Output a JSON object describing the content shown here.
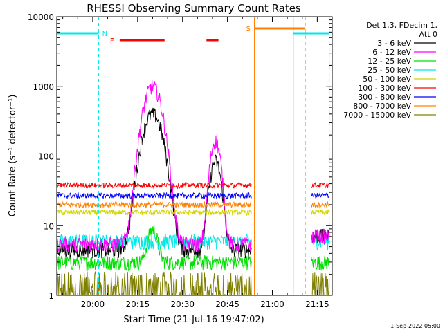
{
  "chart_data": {
    "type": "line",
    "title": "RHESSI Observing Summary Count Rates",
    "xlabel": "Start Time (21-Jul-16 19:47:02)",
    "ylabel": "Count Rate (s⁻¹ detector⁻¹)",
    "yscale": "log",
    "ylim": [
      1,
      10000
    ],
    "xlim_minutes": [
      -12,
      80
    ],
    "x_ticks": [
      {
        "m": 0,
        "label": "20:00"
      },
      {
        "m": 15,
        "label": "20:15"
      },
      {
        "m": 30,
        "label": "20:30"
      },
      {
        "m": 45,
        "label": "20:45"
      },
      {
        "m": 60,
        "label": "21:00"
      },
      {
        "m": 75,
        "label": "21:15"
      }
    ],
    "y_ticks": [
      {
        "v": 1,
        "label": "1"
      },
      {
        "v": 10,
        "label": "10"
      },
      {
        "v": 100,
        "label": "100"
      },
      {
        "v": 1000,
        "label": "1000"
      },
      {
        "v": 10000,
        "label": "10000"
      }
    ],
    "legend_header": [
      "Det 1,3, FDecim 1,",
      "Att 0"
    ],
    "legend_placement": "right",
    "series": [
      {
        "name": "3 - 6 keV",
        "color": "#000000",
        "base": 4.5,
        "peaks": [
          [
            20,
            400,
            3.8
          ],
          [
            41,
            80,
            2.2
          ]
        ],
        "rise": 1.6
      },
      {
        "name": "6 - 12 keV",
        "color": "#ff00ff",
        "base": 5.5,
        "peaks": [
          [
            20,
            1000,
            3.5
          ],
          [
            41,
            160,
            2.0
          ]
        ],
        "rise": 1.3
      },
      {
        "name": "12 - 25 keV",
        "color": "#00e000",
        "base": 3.0,
        "peaks": [
          [
            20,
            6,
            2.0
          ]
        ],
        "rise": 1.0
      },
      {
        "name": "25 - 50 keV",
        "color": "#00e8e8",
        "base": 6.0,
        "peaks": [],
        "rise": 1.0
      },
      {
        "name": "50 - 100 keV",
        "color": "#d4d400",
        "base": 15.5,
        "peaks": [],
        "rise": 1.0
      },
      {
        "name": "100 - 300 keV",
        "color": "#ff0000",
        "base": 38.0,
        "peaks": [],
        "rise": 1.0
      },
      {
        "name": "300 - 800 keV",
        "color": "#0000ff",
        "base": 27.0,
        "peaks": [],
        "rise": 1.0
      },
      {
        "name": "800 - 7000 keV",
        "color": "#ff8000",
        "base": 20.0,
        "peaks": [],
        "rise": 1.0
      },
      {
        "name": "7000 - 15000 keV",
        "color": "#808000",
        "base": 1.4,
        "peaks": [],
        "rise": 1.0
      }
    ],
    "data_segments_minutes": [
      [
        -12,
        53
      ],
      [
        73,
        79
      ]
    ],
    "annotations": {
      "night_label": "N",
      "flare_label": "F",
      "saa_label": "S",
      "night_color": "#00e8e8",
      "flare_color": "#ff0000",
      "saa_color": "#ff8000",
      "night_bars": [
        [
          -12,
          2
        ],
        [
          67,
          79
        ]
      ],
      "night_dashed_x": [
        2,
        79
      ],
      "night_solid_x": [
        -12,
        67
      ],
      "flare_bars": [
        [
          9,
          24
        ],
        [
          38,
          42
        ]
      ],
      "saa_bar": [
        54,
        71
      ],
      "saa_solid_x": 54,
      "saa_dashed_x": 71
    },
    "footer_date": "1-Sep-2022 05:00"
  }
}
